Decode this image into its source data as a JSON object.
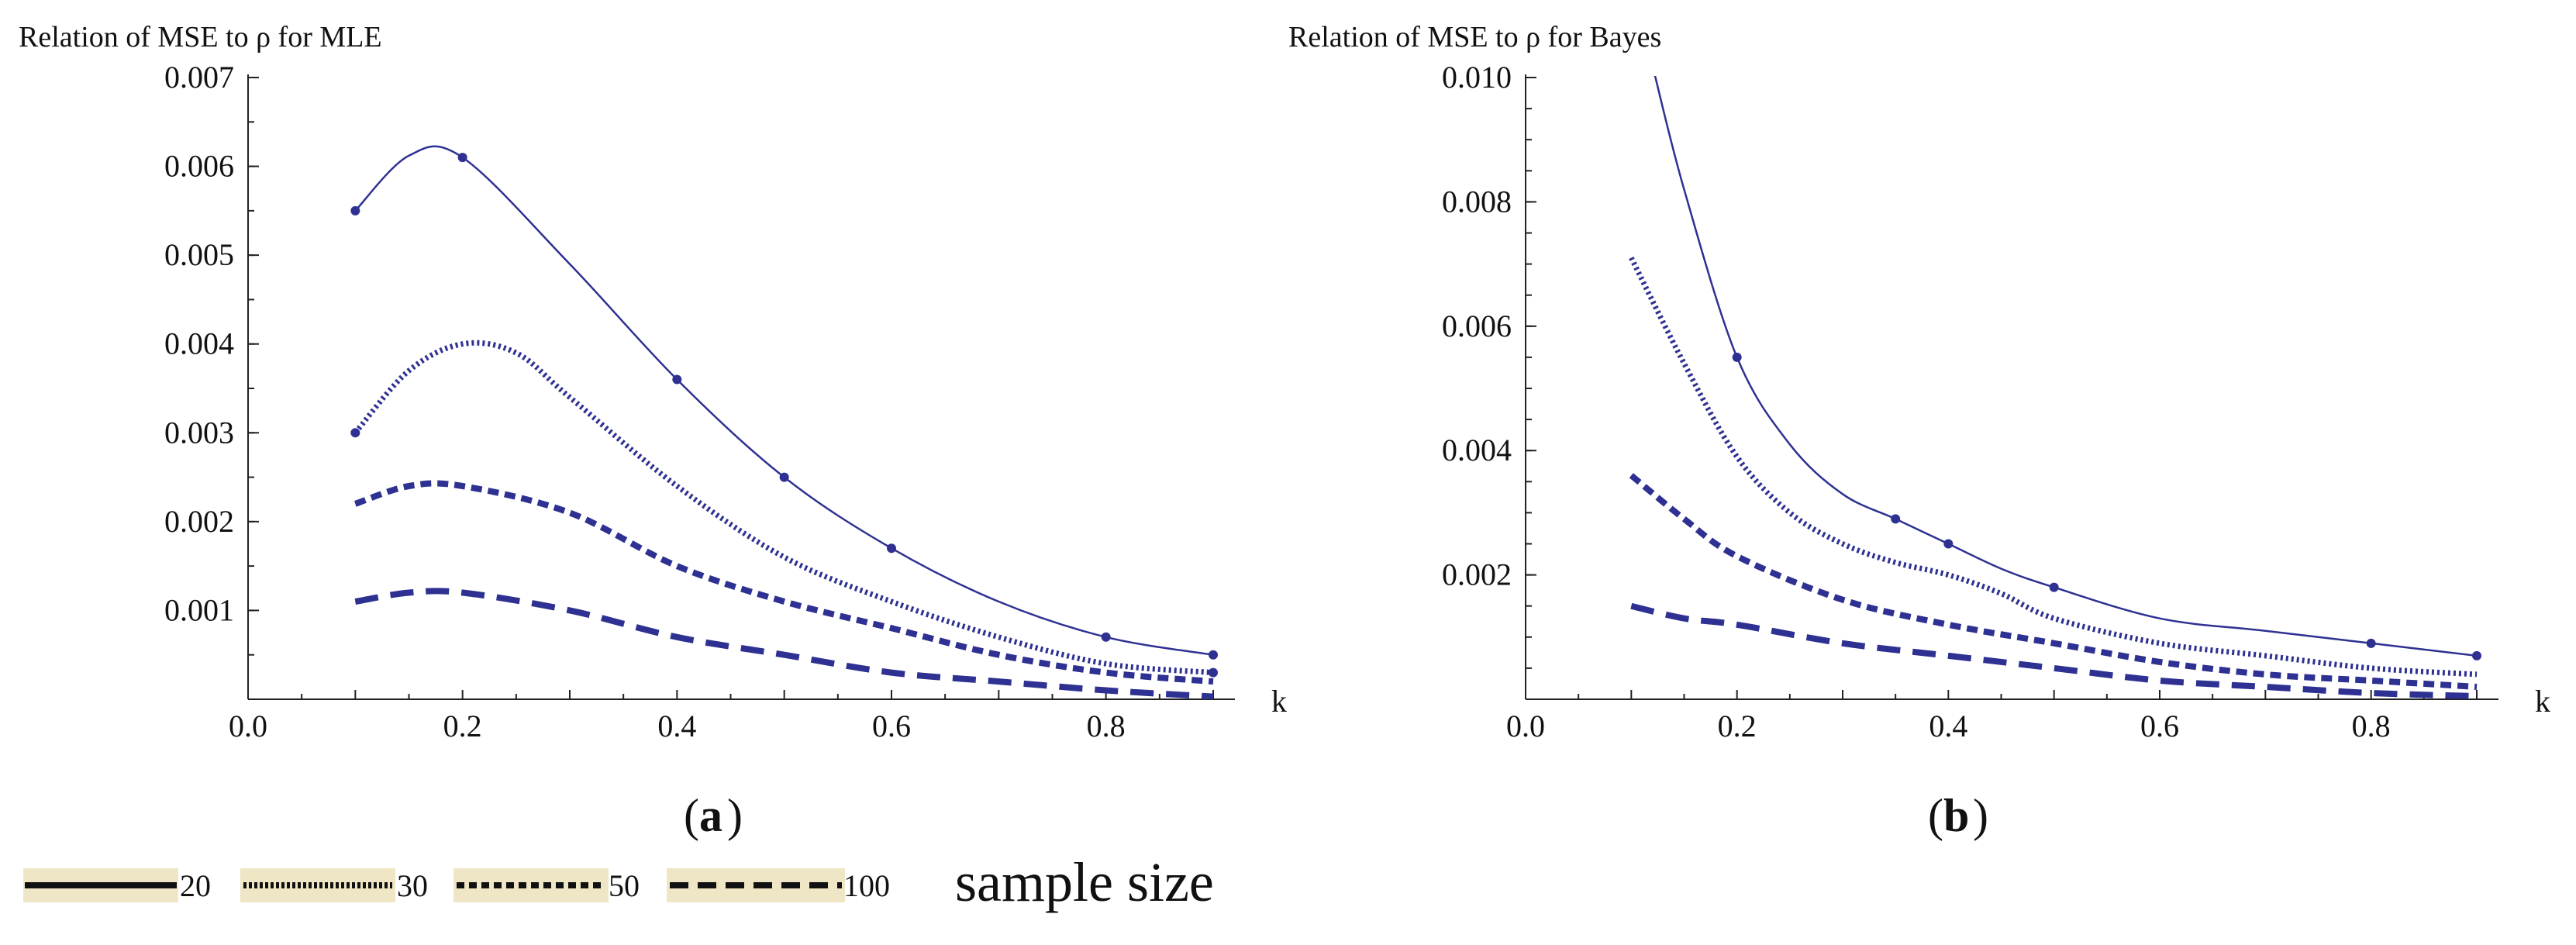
{
  "chart_data": [
    {
      "panel": "a",
      "type": "line",
      "title": "Relation of MSE to ρ for MLE",
      "xlabel": "k",
      "ylabel": "",
      "xlim": [
        0.0,
        0.9
      ],
      "ylim": [
        0.0,
        0.007
      ],
      "xticks": [
        "0.0",
        "0.2",
        "0.4",
        "0.6",
        "0.8"
      ],
      "yticks": [
        "0.001",
        "0.002",
        "0.003",
        "0.004",
        "0.005",
        "0.006",
        "0.007"
      ],
      "panel_label_text": "a",
      "series": [
        {
          "name": "20",
          "style": "solid",
          "x": [
            0.1,
            0.15,
            0.2,
            0.3,
            0.4,
            0.5,
            0.6,
            0.7,
            0.8,
            0.9
          ],
          "y": [
            0.0055,
            0.00612,
            0.0061,
            0.0049,
            0.0036,
            0.0025,
            0.0017,
            0.0011,
            0.0007,
            0.0005
          ],
          "marks_x": [
            0.1,
            0.2,
            0.4,
            0.5,
            0.6,
            0.8,
            0.9
          ],
          "marks_y": [
            0.0055,
            0.0061,
            0.0036,
            0.0025,
            0.0017,
            0.0007,
            0.0005
          ]
        },
        {
          "name": "30",
          "style": "dotted",
          "x": [
            0.1,
            0.15,
            0.2,
            0.25,
            0.3,
            0.4,
            0.5,
            0.6,
            0.7,
            0.8,
            0.9
          ],
          "y": [
            0.003,
            0.0037,
            0.004,
            0.0039,
            0.0034,
            0.0024,
            0.0016,
            0.0011,
            0.0007,
            0.0004,
            0.0003
          ],
          "marks_x": [
            0.1,
            0.9
          ],
          "marks_y": [
            0.003,
            0.0003
          ]
        },
        {
          "name": "50",
          "style": "short-dash",
          "x": [
            0.1,
            0.15,
            0.2,
            0.3,
            0.4,
            0.5,
            0.6,
            0.7,
            0.8,
            0.9
          ],
          "y": [
            0.0022,
            0.0024,
            0.0024,
            0.0021,
            0.0015,
            0.0011,
            0.0008,
            0.0005,
            0.0003,
            0.0002
          ],
          "marks_x": [],
          "marks_y": []
        },
        {
          "name": "100",
          "style": "long-dash",
          "x": [
            0.1,
            0.15,
            0.2,
            0.3,
            0.4,
            0.5,
            0.6,
            0.7,
            0.8,
            0.9
          ],
          "y": [
            0.0011,
            0.0012,
            0.0012,
            0.001,
            0.0007,
            0.0005,
            0.0003,
            0.0002,
            0.0001,
            3e-05
          ],
          "marks_x": [],
          "marks_y": []
        }
      ]
    },
    {
      "panel": "b",
      "type": "line",
      "title": "Relation of MSE to ρ for Bayes",
      "xlabel": "k",
      "ylabel": "",
      "xlim": [
        0.0,
        0.9
      ],
      "ylim": [
        0.0,
        0.01
      ],
      "xticks": [
        "0.0",
        "0.2",
        "0.4",
        "0.6",
        "0.8"
      ],
      "yticks": [
        "0.002",
        "0.004",
        "0.006",
        "0.008",
        "0.010"
      ],
      "panel_label_text": "b",
      "series": [
        {
          "name": "20",
          "style": "solid",
          "x": [
            0.12,
            0.15,
            0.2,
            0.25,
            0.3,
            0.35,
            0.4,
            0.45,
            0.5,
            0.6,
            0.7,
            0.8,
            0.9
          ],
          "y": [
            0.0102,
            0.0082,
            0.0055,
            0.0041,
            0.0033,
            0.0029,
            0.0025,
            0.0021,
            0.0018,
            0.0013,
            0.0011,
            0.0009,
            0.0007
          ],
          "marks_x": [
            0.2,
            0.35,
            0.4,
            0.5,
            0.8,
            0.9
          ],
          "marks_y": [
            0.0055,
            0.0029,
            0.0025,
            0.0018,
            0.0009,
            0.0007
          ]
        },
        {
          "name": "30",
          "style": "dotted",
          "x": [
            0.1,
            0.15,
            0.2,
            0.25,
            0.3,
            0.35,
            0.4,
            0.45,
            0.5,
            0.6,
            0.7,
            0.8,
            0.9
          ],
          "y": [
            0.0071,
            0.0054,
            0.0039,
            0.003,
            0.0025,
            0.0022,
            0.002,
            0.0017,
            0.0013,
            0.0009,
            0.0007,
            0.0005,
            0.0004
          ],
          "marks_x": [],
          "marks_y": []
        },
        {
          "name": "50",
          "style": "short-dash",
          "x": [
            0.1,
            0.15,
            0.2,
            0.3,
            0.4,
            0.5,
            0.6,
            0.7,
            0.8,
            0.9
          ],
          "y": [
            0.0036,
            0.0029,
            0.0023,
            0.0016,
            0.0012,
            0.0009,
            0.0006,
            0.0004,
            0.0003,
            0.0002
          ],
          "marks_x": [],
          "marks_y": []
        },
        {
          "name": "100",
          "style": "long-dash",
          "x": [
            0.1,
            0.15,
            0.2,
            0.3,
            0.4,
            0.5,
            0.6,
            0.7,
            0.8,
            0.9
          ],
          "y": [
            0.0015,
            0.0013,
            0.0012,
            0.0009,
            0.0007,
            0.0005,
            0.0003,
            0.0002,
            0.0001,
            5e-05
          ],
          "marks_x": [],
          "marks_y": []
        }
      ]
    }
  ],
  "legend": {
    "items": [
      {
        "label": "20",
        "style": "solid"
      },
      {
        "label": "30",
        "style": "dotted"
      },
      {
        "label": "50",
        "style": "short-dash"
      },
      {
        "label": "100",
        "style": "long-dash"
      }
    ],
    "title": "sample size"
  },
  "colors": {
    "series": "#2e3192",
    "legend_bg": "#efe6c6",
    "legend_line": "#111111",
    "axis": "#222222"
  }
}
